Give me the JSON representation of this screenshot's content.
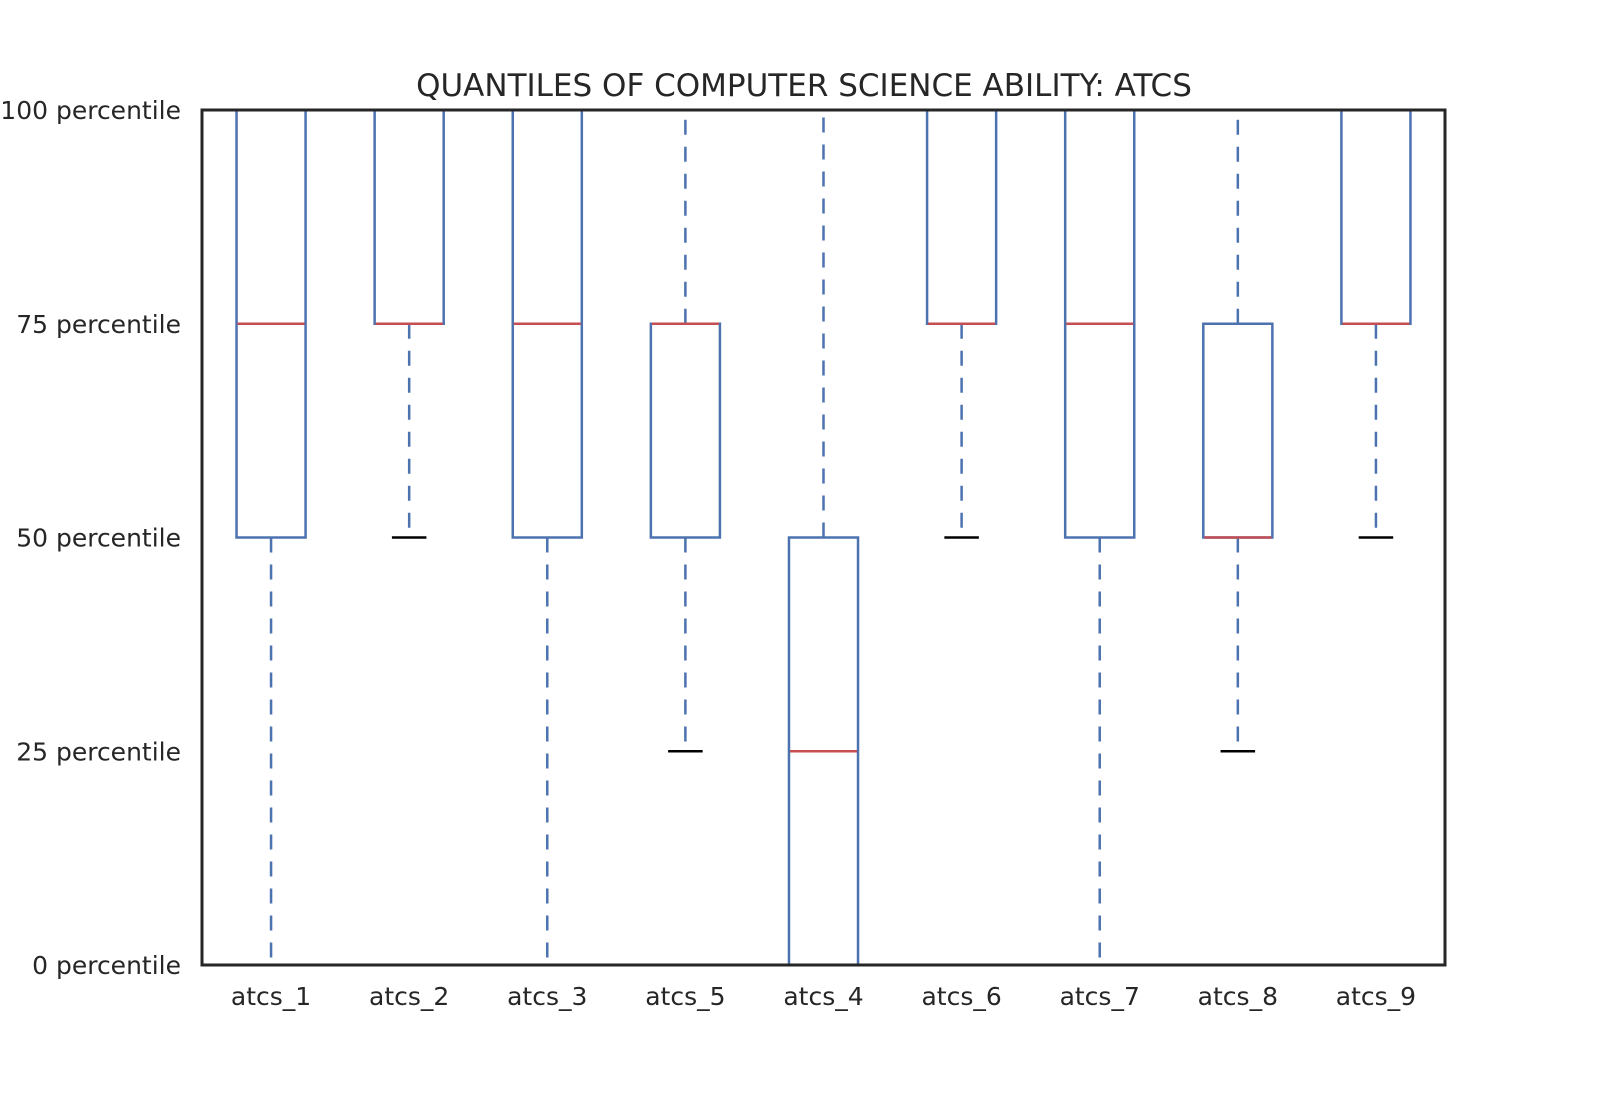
{
  "chart_data": {
    "type": "box",
    "title": "QUANTILES OF COMPUTER SCIENCE ABILITY: ATCS",
    "xlabel": "",
    "ylabel": "",
    "ylim": [
      0,
      100
    ],
    "yticks": [
      {
        "value": 0,
        "label": "0 percentile"
      },
      {
        "value": 25,
        "label": "25 percentile"
      },
      {
        "value": 50,
        "label": "50 percentile"
      },
      {
        "value": 75,
        "label": "75 percentile"
      },
      {
        "value": 100,
        "label": "100 percentile"
      }
    ],
    "grid": false,
    "colors": {
      "box": "#4c72b0",
      "median": "#c44e52",
      "cap": "#000000",
      "axes": "#262626"
    },
    "boxes": [
      {
        "label": "atcs_1",
        "whislo": 0,
        "q1": 50,
        "med": 75,
        "q3": 100,
        "whishi": 100
      },
      {
        "label": "atcs_2",
        "whislo": 50,
        "q1": 75,
        "med": 75,
        "q3": 100,
        "whishi": 100
      },
      {
        "label": "atcs_3",
        "whislo": 0,
        "q1": 50,
        "med": 75,
        "q3": 100,
        "whishi": 100
      },
      {
        "label": "atcs_5",
        "whislo": 25,
        "q1": 50,
        "med": 75,
        "q3": 75,
        "whishi": 100
      },
      {
        "label": "atcs_4",
        "whislo": 0,
        "q1": 0,
        "med": 25,
        "q3": 50,
        "whishi": 100
      },
      {
        "label": "atcs_6",
        "whislo": 50,
        "q1": 75,
        "med": 75,
        "q3": 100,
        "whishi": 100
      },
      {
        "label": "atcs_7",
        "whislo": 0,
        "q1": 50,
        "med": 75,
        "q3": 100,
        "whishi": 100
      },
      {
        "label": "atcs_8",
        "whislo": 25,
        "q1": 50,
        "med": 50,
        "q3": 75,
        "whishi": 100
      },
      {
        "label": "atcs_9",
        "whislo": 50,
        "q1": 75,
        "med": 75,
        "q3": 100,
        "whishi": 100
      }
    ]
  }
}
